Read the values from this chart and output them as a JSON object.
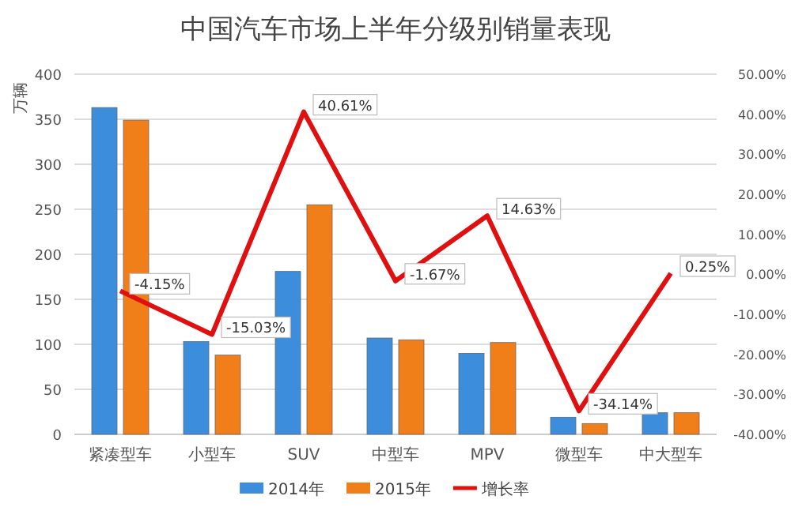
{
  "chart_data": {
    "type": "bar",
    "title": "中国汽车市场上半年分级别销量表现",
    "ylabel": "万辆",
    "categories": [
      "紧凑型车",
      "小型车",
      "SUV",
      "中型车",
      "MPV",
      "微型车",
      "中大型车"
    ],
    "series": [
      {
        "name": "2014年",
        "color": "#3c8ddc",
        "values": [
          363,
          103,
          181,
          107,
          90,
          19,
          24
        ]
      },
      {
        "name": "2015年",
        "color": "#f07f1a",
        "values": [
          349,
          88,
          255,
          105,
          102,
          12,
          24
        ]
      },
      {
        "name": "增长率",
        "type": "line",
        "axis": "y2",
        "color": "#e01010",
        "values": [
          -4.15,
          -15.03,
          40.61,
          -1.67,
          14.63,
          -34.14,
          0.25
        ],
        "value_labels": [
          "-4.15%",
          "-15.03%",
          "40.61%",
          "-1.67%",
          "14.63%",
          "-34.14%",
          "0.25%"
        ]
      }
    ],
    "ylim": [
      0,
      400
    ],
    "yticks": [
      0,
      50,
      100,
      150,
      200,
      250,
      300,
      350,
      400
    ],
    "y2lim": [
      -40,
      50
    ],
    "y2ticks": [
      {
        "value": -40,
        "label": "-40.00%"
      },
      {
        "value": -30,
        "label": "-30.00%"
      },
      {
        "value": -20,
        "label": "-20.00%"
      },
      {
        "value": -10,
        "label": "-10.00%"
      },
      {
        "value": 0,
        "label": "0.00%"
      },
      {
        "value": 10,
        "label": "10.00%"
      },
      {
        "value": 20,
        "label": "20.00%"
      },
      {
        "value": 30,
        "label": "30.00%"
      },
      {
        "value": 40,
        "label": "40.00%"
      },
      {
        "value": 50,
        "label": "50.00%"
      }
    ],
    "grid": "y",
    "legend": "bottom",
    "marker": "none"
  }
}
